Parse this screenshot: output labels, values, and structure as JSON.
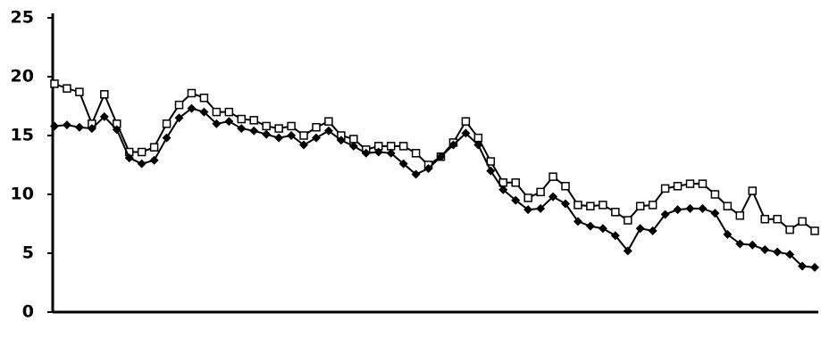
{
  "chart_data": {
    "type": "line",
    "series": [
      {
        "color": "#000000",
        "marker": "square",
        "values": [
          19.4,
          19.0,
          18.7,
          16.0,
          18.5,
          16.0,
          13.6,
          13.6,
          14.0,
          16.0,
          17.6,
          18.6,
          18.2,
          17.0,
          17.0,
          16.4,
          16.3,
          15.8,
          15.6,
          15.8,
          15.0,
          15.7,
          16.2,
          15.0,
          14.7,
          13.8,
          14.1,
          14.1,
          14.1,
          13.5,
          12.5,
          13.2,
          14.4,
          16.2,
          14.8,
          12.8,
          11.0,
          11.0,
          9.7,
          10.2,
          11.5,
          10.7,
          9.1,
          9.0,
          9.1,
          8.5,
          7.8,
          9.0,
          9.1,
          10.5,
          10.7,
          10.9,
          10.9,
          10.0,
          9.0,
          8.2,
          10.3,
          7.9,
          7.9,
          7.0,
          7.7,
          6.9
        ]
      },
      {
        "color": "#000000",
        "marker": "diamond",
        "values": [
          15.8,
          15.9,
          15.7,
          15.6,
          16.6,
          15.5,
          13.1,
          12.6,
          12.9,
          14.8,
          16.5,
          17.3,
          17.0,
          16.0,
          16.2,
          15.6,
          15.4,
          15.1,
          14.8,
          15.0,
          14.2,
          14.8,
          15.4,
          14.6,
          14.1,
          13.5,
          13.6,
          13.5,
          12.6,
          11.7,
          12.2,
          13.2,
          14.2,
          15.2,
          14.2,
          12.0,
          10.4,
          9.5,
          8.7,
          8.8,
          9.8,
          9.2,
          7.7,
          7.3,
          7.1,
          6.5,
          5.2,
          7.1,
          6.9,
          8.3,
          8.7,
          8.8,
          8.8,
          8.4,
          6.6,
          5.8,
          5.7,
          5.3,
          5.1,
          4.9,
          3.9,
          3.8
        ]
      }
    ],
    "ylim": [
      0,
      25
    ],
    "yticks": [
      0,
      5,
      10,
      15,
      20,
      25
    ]
  }
}
